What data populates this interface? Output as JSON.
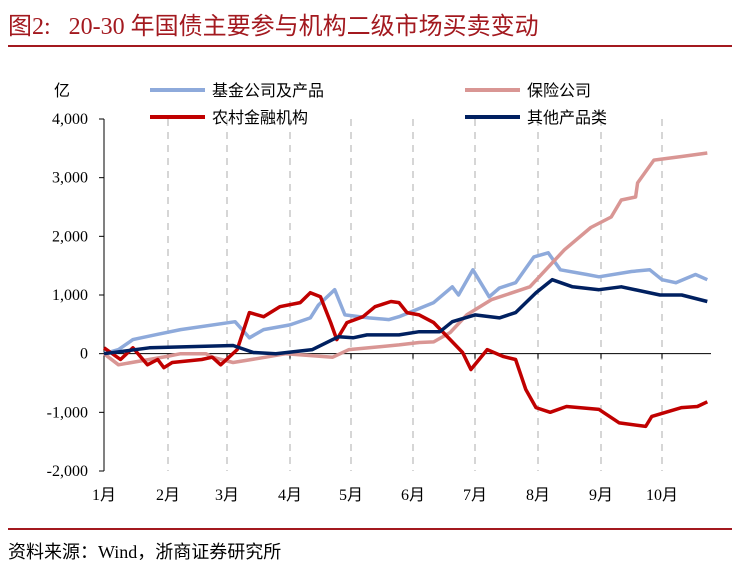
{
  "title": "图2:   20-30 年国债主要参与机构二级市场买卖变动",
  "source": "资料来源：Wind，浙商证券研究所",
  "chart_data": {
    "type": "line",
    "ylabel": "亿",
    "ylim": [
      -2000,
      4000
    ],
    "yticks": [
      4000,
      3000,
      2000,
      1000,
      0,
      -1000,
      -2000
    ],
    "ytick_labels": [
      "4,000",
      "3,000",
      "2,000",
      "1,000",
      "0",
      "-1,000",
      "-2,000"
    ],
    "xtick_labels": [
      "1月",
      "2月",
      "3月",
      "4月",
      "5月",
      "6月",
      "7月",
      "8月",
      "9月",
      "10月"
    ],
    "xgrid": "dashed vertical at month boundaries",
    "legend_position": "top",
    "series": [
      {
        "name": "基金公司及产品",
        "color": "#8eaadb",
        "points": [
          [
            "01-01",
            0
          ],
          [
            "01-08",
            70
          ],
          [
            "01-15",
            240
          ],
          [
            "01-27",
            330
          ],
          [
            "02-07",
            410
          ],
          [
            "03-05",
            545
          ],
          [
            "03-12",
            270
          ],
          [
            "03-19",
            410
          ],
          [
            "04-01",
            490
          ],
          [
            "04-11",
            610
          ],
          [
            "04-15",
            830
          ],
          [
            "04-23",
            1090
          ],
          [
            "04-28",
            660
          ],
          [
            "05-10",
            610
          ],
          [
            "05-20",
            580
          ],
          [
            "05-25",
            630
          ],
          [
            "06-11",
            870
          ],
          [
            "06-20",
            1140
          ],
          [
            "06-23",
            1000
          ],
          [
            "06-30",
            1430
          ],
          [
            "07-08",
            970
          ],
          [
            "07-13",
            1120
          ],
          [
            "07-21",
            1210
          ],
          [
            "07-30",
            1650
          ],
          [
            "08-06",
            1720
          ],
          [
            "08-12",
            1430
          ],
          [
            "08-25",
            1350
          ],
          [
            "08-31",
            1310
          ],
          [
            "09-16",
            1400
          ],
          [
            "09-25",
            1430
          ],
          [
            "10-01",
            1260
          ],
          [
            "10-08",
            1210
          ],
          [
            "10-18",
            1350
          ],
          [
            "10-24",
            1260
          ]
        ]
      },
      {
        "name": "保险公司",
        "color": "#d99694",
        "points": [
          [
            "01-01",
            0
          ],
          [
            "01-08",
            -190
          ],
          [
            "01-31",
            -50
          ],
          [
            "02-07",
            0
          ],
          [
            "02-19",
            0
          ],
          [
            "02-22",
            -60
          ],
          [
            "03-04",
            -150
          ],
          [
            "03-20",
            -60
          ],
          [
            "03-30",
            0
          ],
          [
            "04-22",
            -60
          ],
          [
            "04-30",
            70
          ],
          [
            "05-16",
            120
          ],
          [
            "05-25",
            150
          ],
          [
            "06-04",
            190
          ],
          [
            "06-11",
            200
          ],
          [
            "06-19",
            360
          ],
          [
            "06-27",
            660
          ],
          [
            "07-09",
            920
          ],
          [
            "07-28",
            1140
          ],
          [
            "08-14",
            1770
          ],
          [
            "08-27",
            2150
          ],
          [
            "09-06",
            2330
          ],
          [
            "09-11",
            2620
          ],
          [
            "09-18",
            2670
          ],
          [
            "09-19",
            2910
          ],
          [
            "09-27",
            3300
          ],
          [
            "10-11",
            3360
          ],
          [
            "10-24",
            3420
          ]
        ]
      },
      {
        "name": "农村金融机构",
        "color": "#c00000",
        "points": [
          [
            "01-01",
            100
          ],
          [
            "01-09",
            -100
          ],
          [
            "01-15",
            100
          ],
          [
            "01-22",
            -190
          ],
          [
            "01-27",
            -100
          ],
          [
            "01-30",
            -240
          ],
          [
            "02-03",
            -150
          ],
          [
            "02-17",
            -100
          ],
          [
            "02-22",
            -60
          ],
          [
            "02-26",
            -190
          ],
          [
            "03-06",
            70
          ],
          [
            "03-12",
            700
          ],
          [
            "03-19",
            630
          ],
          [
            "03-27",
            800
          ],
          [
            "04-06",
            870
          ],
          [
            "04-11",
            1040
          ],
          [
            "04-16",
            970
          ],
          [
            "04-21",
            530
          ],
          [
            "04-24",
            240
          ],
          [
            "04-29",
            530
          ],
          [
            "05-07",
            630
          ],
          [
            "05-13",
            800
          ],
          [
            "05-21",
            890
          ],
          [
            "05-25",
            870
          ],
          [
            "05-29",
            700
          ],
          [
            "06-04",
            660
          ],
          [
            "06-11",
            530
          ],
          [
            "06-19",
            240
          ],
          [
            "06-25",
            20
          ],
          [
            "06-29",
            -270
          ],
          [
            "07-07",
            70
          ],
          [
            "07-15",
            -50
          ],
          [
            "07-21",
            -100
          ],
          [
            "07-26",
            -610
          ],
          [
            "07-31",
            -920
          ],
          [
            "08-07",
            -1000
          ],
          [
            "08-15",
            -900
          ],
          [
            "08-31",
            -950
          ],
          [
            "09-10",
            -1180
          ],
          [
            "09-23",
            -1240
          ],
          [
            "09-26",
            -1070
          ],
          [
            "10-11",
            -920
          ],
          [
            "10-19",
            -900
          ],
          [
            "10-24",
            -820
          ]
        ]
      },
      {
        "name": "其他产品类",
        "color": "#002060",
        "points": [
          [
            "01-01",
            0
          ],
          [
            "01-23",
            100
          ],
          [
            "03-04",
            140
          ],
          [
            "03-14",
            20
          ],
          [
            "03-25",
            0
          ],
          [
            "04-12",
            70
          ],
          [
            "04-22",
            240
          ],
          [
            "04-25",
            290
          ],
          [
            "05-02",
            270
          ],
          [
            "05-09",
            320
          ],
          [
            "05-25",
            320
          ],
          [
            "06-04",
            375
          ],
          [
            "06-14",
            375
          ],
          [
            "06-20",
            545
          ],
          [
            "07-01",
            660
          ],
          [
            "07-13",
            610
          ],
          [
            "07-21",
            700
          ],
          [
            "07-31",
            1040
          ],
          [
            "08-08",
            1260
          ],
          [
            "08-18",
            1140
          ],
          [
            "08-31",
            1090
          ],
          [
            "09-11",
            1140
          ],
          [
            "09-30",
            1000
          ],
          [
            "10-11",
            1000
          ],
          [
            "10-24",
            890
          ]
        ]
      }
    ]
  }
}
